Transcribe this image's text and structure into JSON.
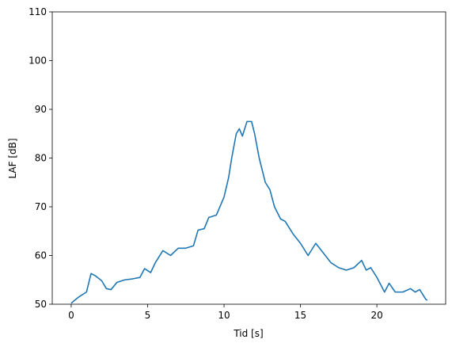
{
  "chart_data": {
    "type": "line",
    "xlabel": "Tid [s]",
    "ylabel": "LAF [dB]",
    "x": [
      0,
      0.3,
      0.5,
      1.0,
      1.3,
      1.6,
      2.0,
      2.3,
      2.6,
      3.0,
      3.5,
      4.0,
      4.5,
      4.8,
      5.2,
      5.5,
      6.0,
      6.5,
      7.0,
      7.5,
      8.0,
      8.3,
      8.7,
      9.0,
      9.5,
      10.0,
      10.3,
      10.5,
      10.8,
      11.0,
      11.2,
      11.5,
      11.8,
      12.0,
      12.3,
      12.7,
      13.0,
      13.3,
      13.7,
      14.0,
      14.5,
      15.0,
      15.5,
      16.0,
      16.5,
      17.0,
      17.5,
      18.0,
      18.5,
      19.0,
      19.3,
      19.6,
      20.0,
      20.5,
      20.8,
      21.2,
      21.7,
      22.2,
      22.5,
      22.8,
      23.2,
      23.3
    ],
    "series": [
      {
        "color": "#1f77b4",
        "values": [
          50.2,
          51,
          51.5,
          52.5,
          56.3,
          55.8,
          54.8,
          53.2,
          53,
          54.5,
          55,
          55.2,
          55.5,
          57.3,
          56.5,
          58.5,
          61,
          60,
          61.5,
          61.5,
          62,
          65.2,
          65.5,
          67.8,
          68.3,
          72,
          76,
          80,
          85,
          86,
          84.5,
          87.5,
          87.5,
          85,
          80,
          75,
          73.5,
          70,
          67.5,
          67,
          64.5,
          62.5,
          60,
          62.5,
          60.5,
          58.5,
          57.5,
          57,
          57.5,
          59,
          57,
          57.5,
          55.5,
          52.5,
          54.3,
          52.5,
          52.5,
          53.2,
          52.5,
          53,
          51,
          50.8
        ]
      }
    ],
    "xlim": [
      -1.24,
      24.5
    ],
    "ylim": [
      50,
      110
    ],
    "xticks": [
      0,
      5,
      10,
      15,
      20
    ],
    "yticks": [
      50,
      60,
      70,
      80,
      90,
      100,
      110
    ]
  }
}
